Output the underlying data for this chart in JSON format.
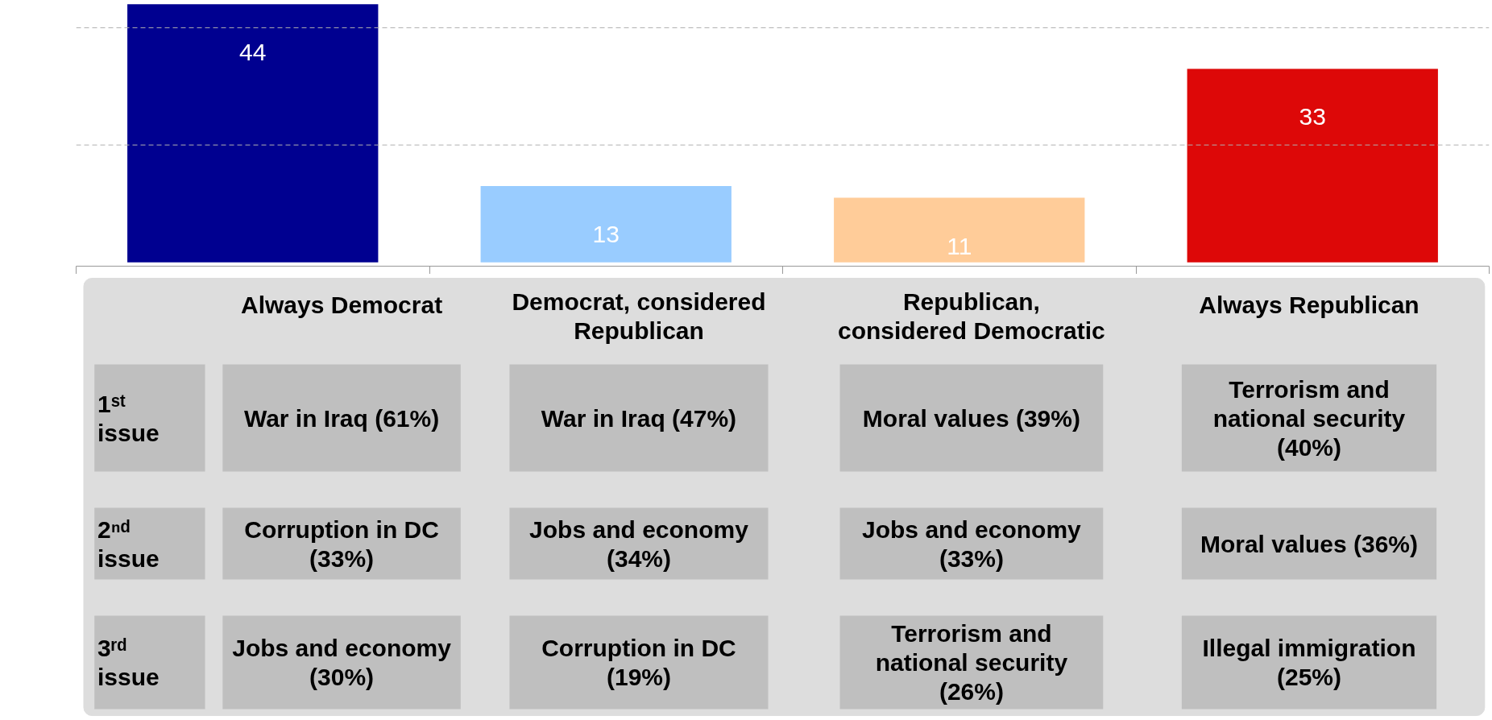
{
  "chart_data": {
    "type": "bar",
    "categories": [
      "Always Democrat",
      "Democrat, considered Republican",
      "Republican, considered Democratic",
      "Always Republican"
    ],
    "values": [
      44,
      13,
      11,
      33
    ],
    "colors": [
      "#000090",
      "#99ccff",
      "#ffcc99",
      "#dd0808"
    ],
    "ref_lines": [
      {
        "axis": "y",
        "value": 20,
        "color": "#b0b0b0",
        "line_style": "dashed"
      },
      {
        "axis": "y",
        "value": 40,
        "color": "#b0b0b0",
        "line_style": "dashed"
      }
    ],
    "data_labels": true,
    "tick_labels": "x",
    "annotations": [
      "1ˢᵗ issue",
      "War in Iraq (61%)",
      "War in Iraq (47%)",
      "Moral values (39%)",
      "Terrorism and national security (40%)",
      "2ⁿᵈ issue",
      "Corruption in DC (33%)",
      "Jobs and economy (34%)",
      "Jobs and economy (33%)",
      "Moral values (36%)",
      "3ʳᵈ issue",
      "Jobs and economy (30%)",
      "Corruption in DC (19%)",
      "Terrorism and national security (26%)",
      "Illegal immigration (25%)"
    ]
  }
}
